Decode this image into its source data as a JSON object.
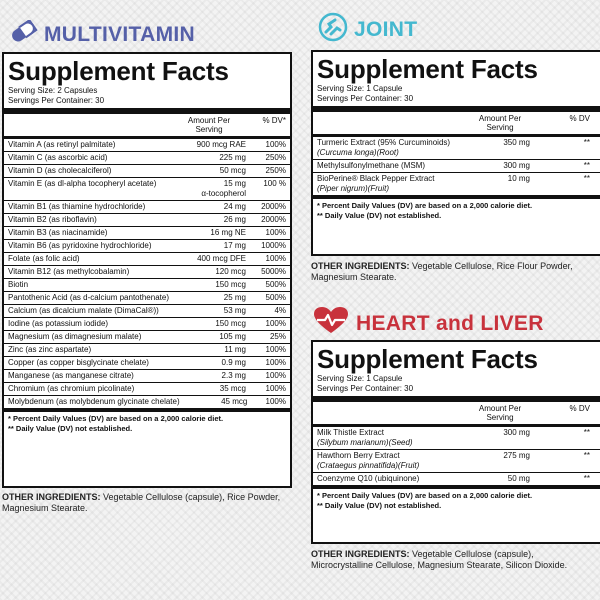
{
  "multivitamin": {
    "heading": "MULTIVITAMIN",
    "heading_color": "#5560a8",
    "icon": "capsule-icon",
    "facts_title": "Supplement Facts",
    "serving_size": "Serving Size: 2 Capsules",
    "servings_per_container": "Servings Per Container: 30",
    "col_amount": "Amount Per Serving",
    "col_dv": "% DV*",
    "rows": [
      {
        "name": "Vitamin A (as retinyl palmitate)",
        "amount": "900 mcg RAE",
        "dv": "100%"
      },
      {
        "name": "Vitamin C (as ascorbic acid)",
        "amount": "225 mg",
        "dv": "250%"
      },
      {
        "name": "Vitamin D (as cholecalciferol)",
        "amount": "50 mcg",
        "dv": "250%"
      },
      {
        "name": "Vitamin E (as dl-alpha tocopheryl acetate)",
        "amount": "15 mg",
        "dv": "100 %",
        "sub": "α-tocopherol"
      },
      {
        "name": "Vitamin B1 (as thiamine hydrochloride)",
        "amount": "24 mg",
        "dv": "2000%"
      },
      {
        "name": "Vitamin B2 (as riboflavin)",
        "amount": "26 mg",
        "dv": "2000%"
      },
      {
        "name": "Vitamin B3 (as niacinamide)",
        "amount": "16 mg NE",
        "dv": "100%"
      },
      {
        "name": "Vitamin B6 (as pyridoxine hydrochloride)",
        "amount": "17 mg",
        "dv": "1000%"
      },
      {
        "name": "Folate (as folic acid)",
        "amount": "400 mcg DFE",
        "dv": "100%"
      },
      {
        "name": "Vitamin B12 (as methylcobalamin)",
        "amount": "120 mcg",
        "dv": "5000%"
      },
      {
        "name": "Biotin",
        "amount": "150 mcg",
        "dv": "500%"
      },
      {
        "name": "Pantothenic Acid (as d-calcium pantothenate)",
        "amount": "25 mg",
        "dv": "500%"
      },
      {
        "name": "Calcium (as dicalcium malate (DimaCal®))",
        "amount": "53 mg",
        "dv": "4%"
      },
      {
        "name": "Iodine (as potassium iodide)",
        "amount": "150 mcg",
        "dv": "100%"
      },
      {
        "name": "Magnesium (as dimagnesium malate)",
        "amount": "105 mg",
        "dv": "25%"
      },
      {
        "name": "Zinc (as zinc aspartate)",
        "amount": "11 mg",
        "dv": "100%"
      },
      {
        "name": "Copper (as copper bisglycinate chelate)",
        "amount": "0.9 mg",
        "dv": "100%"
      },
      {
        "name": "Manganese (as manganese citrate)",
        "amount": "2.3 mg",
        "dv": "100%"
      },
      {
        "name": "Chromium (as chromium picolinate)",
        "amount": "35 mcg",
        "dv": "100%"
      },
      {
        "name": "Molybdenum (as molybdenum glycinate chelate)",
        "amount": "45 mcg",
        "dv": "100%"
      }
    ],
    "footnote1": "* Percent Daily Values (DV) are based on a 2,000 calorie diet.",
    "footnote2": "** Daily Value (DV) not established.",
    "other_label": "OTHER INGREDIENTS:",
    "other_text": "Vegetable Cellulose (capsule), Rice Powder, Magnesium Stearate."
  },
  "joint": {
    "heading": "JOINT",
    "heading_color": "#44b8cf",
    "icon": "joint-icon",
    "facts_title": "Supplement Facts",
    "serving_size": "Serving Size: 1 Capsule",
    "servings_per_container": "Servings Per Container: 30",
    "col_amount": "Amount Per Serving",
    "col_dv": "% DV",
    "rows": [
      {
        "name": "Turmeric Extract (95% Curcuminoids)",
        "sub": "(Curcuma longa)(Root)",
        "amount": "350 mg",
        "dv": "**"
      },
      {
        "name": "Methylsulfonylmethane (MSM)",
        "amount": "300 mg",
        "dv": "**"
      },
      {
        "name": "BioPerine® Black Pepper Extract",
        "sub": "(Piper nigrum)(Fruit)",
        "amount": "10 mg",
        "dv": "**"
      }
    ],
    "footnote1": "* Percent Daily Values (DV) are based on a 2,000 calorie diet.",
    "footnote2": "** Daily Value (DV) not established.",
    "other_label": "OTHER INGREDIENTS:",
    "other_text": "Vegetable Cellulose, Rice Flour Powder, Magnesium Stearate."
  },
  "heart": {
    "heading": "HEART and LIVER",
    "heading_color": "#c8323c",
    "icon": "heart-icon",
    "facts_title": "Supplement Facts",
    "serving_size": "Serving Size: 1 Capsule",
    "servings_per_container": "Servings Per Container: 30",
    "col_amount": "Amount Per Serving",
    "col_dv": "% DV",
    "rows": [
      {
        "name": "Milk Thistle Extract",
        "sub": "(Silybum marianum)(Seed)",
        "amount": "300 mg",
        "dv": "**"
      },
      {
        "name": "Hawthorn Berry Extract",
        "sub": "(Crataegus pinnatifida)(Fruit)",
        "amount": "275 mg",
        "dv": "**"
      },
      {
        "name": "Coenzyme Q10 (ubiquinone)",
        "amount": "50 mg",
        "dv": "**"
      }
    ],
    "footnote1": "* Percent Daily Values (DV) are based on a 2,000 calorie diet.",
    "footnote2": "** Daily Value (DV) not established.",
    "other_label": "OTHER INGREDIENTS:",
    "other_text": "Vegetable Cellulose (capsule), Microcrystalline Cellulose, Magnesium Stearate, Silicon Dioxide."
  }
}
